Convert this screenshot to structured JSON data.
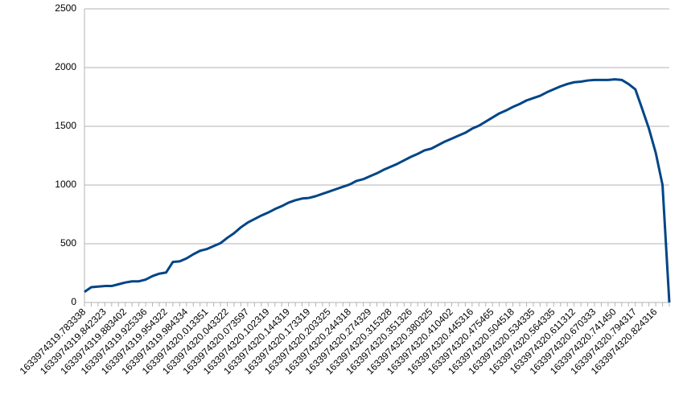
{
  "chart_data": {
    "type": "line",
    "categories": [
      "1633974319.783338",
      null,
      null,
      "1633974319.842323",
      null,
      null,
      "1633974319.883402",
      null,
      null,
      "1633974319.925336",
      null,
      null,
      "1633974319.954322",
      null,
      null,
      "1633974319.984334",
      null,
      null,
      "1633974320.013351",
      null,
      null,
      "1633974320.043322",
      null,
      null,
      "1633974320.073597",
      null,
      null,
      "1633974320.102319",
      null,
      null,
      "1633974320.144319",
      null,
      null,
      "1633974320.173319",
      null,
      null,
      "1633974320.203325",
      null,
      null,
      "1633974320.244318",
      null,
      null,
      "1633974320.274329",
      null,
      null,
      "1633974320.315328",
      null,
      null,
      "1633974320.351326",
      null,
      null,
      "1633974320.380325",
      null,
      null,
      "1633974320.410402",
      null,
      null,
      "1633974320.445316",
      null,
      null,
      "1633974320.475465",
      null,
      null,
      "1633974320.504518",
      null,
      null,
      "1633974320.534335",
      null,
      null,
      "1633974320.564335",
      null,
      null,
      "1633974320.611312",
      null,
      null,
      "1633974320.670333",
      null,
      null,
      "1633974320.741450",
      null,
      null,
      "1633974320.794317",
      null,
      null,
      "1633974320.824316",
      null,
      null
    ],
    "series": [
      {
        "color": "#004586",
        "values": [
          90,
          130,
          135,
          140,
          140,
          155,
          170,
          180,
          180,
          195,
          225,
          245,
          255,
          345,
          350,
          375,
          410,
          440,
          455,
          480,
          505,
          550,
          590,
          640,
          680,
          710,
          740,
          765,
          795,
          820,
          850,
          870,
          885,
          890,
          905,
          925,
          945,
          965,
          985,
          1005,
          1035,
          1050,
          1075,
          1100,
          1130,
          1155,
          1180,
          1210,
          1240,
          1265,
          1295,
          1310,
          1340,
          1370,
          1395,
          1420,
          1445,
          1480,
          1505,
          1540,
          1575,
          1610,
          1635,
          1665,
          1690,
          1720,
          1740,
          1760,
          1790,
          1815,
          1840,
          1860,
          1875,
          1880,
          1890,
          1895,
          1895,
          1895,
          1900,
          1895,
          1860,
          1815,
          1650,
          1480,
          1275,
          1000,
          0
        ]
      }
    ],
    "ylim": [
      0,
      2500
    ],
    "yticks": [
      0,
      500,
      1000,
      1500,
      2000,
      2500
    ],
    "grid": true
  }
}
